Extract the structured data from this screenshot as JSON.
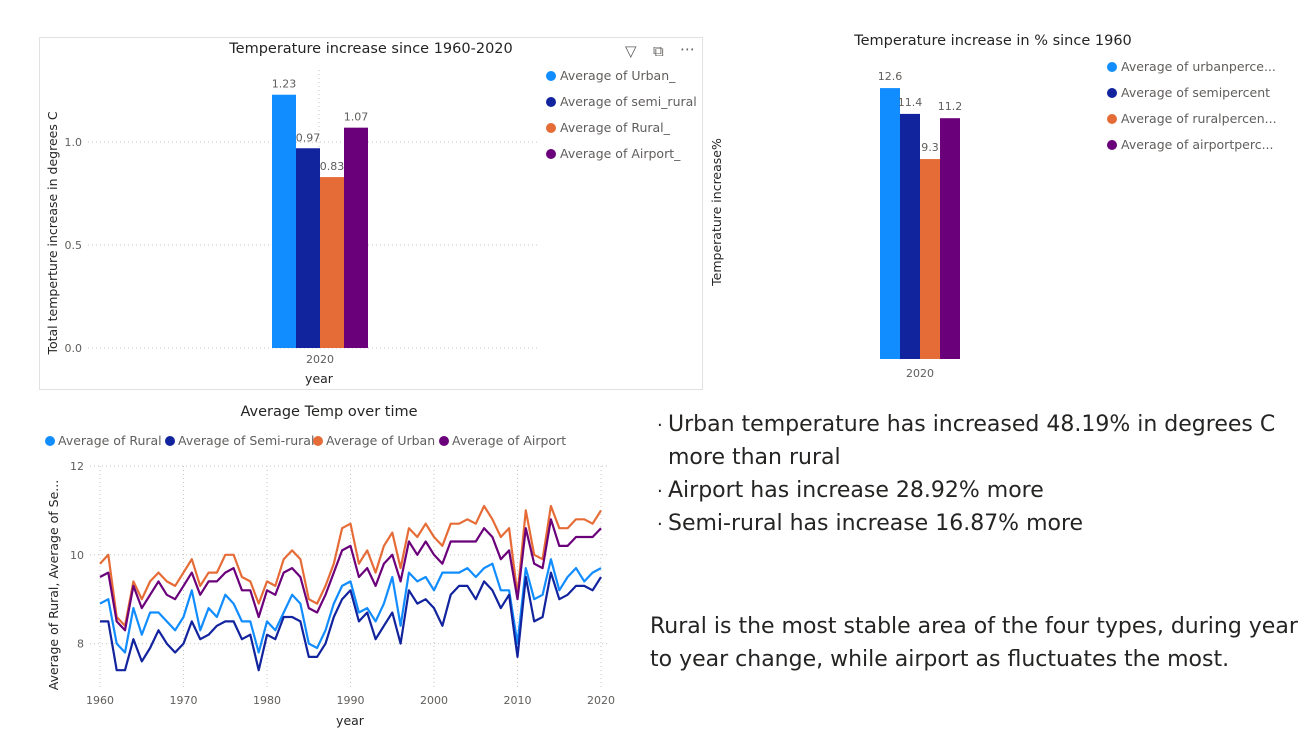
{
  "chart_data": [
    {
      "type": "bar",
      "title": "Temperature increase since 1960-2020",
      "xlabel": "year",
      "ylabel": "Total temperture increase in degrees C",
      "categories": [
        "2020"
      ],
      "ylim": [
        0,
        1.35
      ],
      "yticks": [
        "0.0",
        "0.5",
        "1.0"
      ],
      "legend_position": "right",
      "series": [
        {
          "name": "Average of Urban_",
          "values": [
            1.23
          ],
          "label": "1.23",
          "color": "#118dff"
        },
        {
          "name": "Average of semi_rural",
          "values": [
            0.97
          ],
          "label": "0.97",
          "color": "#12239e"
        },
        {
          "name": "Average of Rural_",
          "values": [
            0.83
          ],
          "label": "0.83",
          "color": "#e66c37"
        },
        {
          "name": "Average of Airport_",
          "values": [
            1.07
          ],
          "label": "1.07",
          "color": "#6b007b"
        }
      ]
    },
    {
      "type": "bar",
      "title": "Temperature increase in % since 1960",
      "xlabel": "",
      "ylabel": "Temperature increase%",
      "categories": [
        "2020"
      ],
      "ylim": [
        0,
        14
      ],
      "legend_position": "right",
      "series": [
        {
          "name": "Average of urbanperce...",
          "values": [
            12.6
          ],
          "label": "12.6",
          "color": "#118dff"
        },
        {
          "name": "Average of semipercent",
          "values": [
            11.4
          ],
          "label": "11.4",
          "color": "#12239e"
        },
        {
          "name": "Average of ruralpercen...",
          "values": [
            9.3
          ],
          "label": "9.3",
          "color": "#e66c37"
        },
        {
          "name": "Average of airportperc...",
          "values": [
            11.2
          ],
          "label": "11.2",
          "color": "#6b007b"
        }
      ]
    },
    {
      "type": "line",
      "title": "Average Temp over time",
      "xlabel": "year",
      "ylabel": "Average of Rural, Average of Se...",
      "xlim": [
        1960,
        2020
      ],
      "ylim": [
        7,
        12
      ],
      "xticks": [
        "1960",
        "1970",
        "1980",
        "1990",
        "2000",
        "2010",
        "2020"
      ],
      "yticks": [
        "8",
        "10",
        "12"
      ],
      "legend_position": "top-left",
      "x": [
        1960,
        1961,
        1962,
        1963,
        1964,
        1965,
        1966,
        1967,
        1968,
        1969,
        1970,
        1971,
        1972,
        1973,
        1974,
        1975,
        1976,
        1977,
        1978,
        1979,
        1980,
        1981,
        1982,
        1983,
        1984,
        1985,
        1986,
        1987,
        1988,
        1989,
        1990,
        1991,
        1992,
        1993,
        1994,
        1995,
        1996,
        1997,
        1998,
        1999,
        2000,
        2001,
        2002,
        2003,
        2004,
        2005,
        2006,
        2007,
        2008,
        2009,
        2010,
        2011,
        2012,
        2013,
        2014,
        2015,
        2016,
        2017,
        2018,
        2019,
        2020
      ],
      "series": [
        {
          "name": "Average of Rural",
          "color": "#118dff",
          "values": [
            8.9,
            9.0,
            8.0,
            7.8,
            8.8,
            8.2,
            8.7,
            8.7,
            8.5,
            8.3,
            8.6,
            9.2,
            8.3,
            8.8,
            8.6,
            9.1,
            8.9,
            8.5,
            8.5,
            7.8,
            8.5,
            8.3,
            8.7,
            9.1,
            8.9,
            8.0,
            7.9,
            8.3,
            8.9,
            9.3,
            9.4,
            8.7,
            8.8,
            8.5,
            8.9,
            9.5,
            8.4,
            9.6,
            9.4,
            9.5,
            9.2,
            9.6,
            9.6,
            9.6,
            9.7,
            9.5,
            9.7,
            9.8,
            9.2,
            9.2,
            8.0,
            9.7,
            9.0,
            9.1,
            9.9,
            9.2,
            9.5,
            9.7,
            9.4,
            9.6,
            9.7
          ]
        },
        {
          "name": "Average of Semi-rural",
          "color": "#12239e",
          "values": [
            8.5,
            8.5,
            7.4,
            7.4,
            8.1,
            7.6,
            7.9,
            8.3,
            8.0,
            7.8,
            8.0,
            8.5,
            8.1,
            8.2,
            8.4,
            8.5,
            8.5,
            8.1,
            8.2,
            7.4,
            8.2,
            8.1,
            8.6,
            8.6,
            8.5,
            7.7,
            7.7,
            8.0,
            8.6,
            9.0,
            9.2,
            8.5,
            8.7,
            8.1,
            8.4,
            8.7,
            8.0,
            9.2,
            8.9,
            9.0,
            8.8,
            8.4,
            9.1,
            9.3,
            9.3,
            9.0,
            9.4,
            9.2,
            8.8,
            9.1,
            7.7,
            9.5,
            8.5,
            8.6,
            9.6,
            9.0,
            9.1,
            9.3,
            9.3,
            9.2,
            9.5
          ]
        },
        {
          "name": "Average of Urban",
          "color": "#e66c37",
          "values": [
            9.8,
            10.0,
            8.6,
            8.4,
            9.4,
            9.0,
            9.4,
            9.6,
            9.4,
            9.3,
            9.6,
            9.9,
            9.3,
            9.6,
            9.6,
            10.0,
            10.0,
            9.5,
            9.4,
            8.9,
            9.4,
            9.3,
            9.9,
            10.1,
            9.9,
            9.0,
            8.9,
            9.3,
            9.8,
            10.6,
            10.7,
            9.8,
            10.1,
            9.6,
            10.2,
            10.5,
            9.7,
            10.6,
            10.4,
            10.7,
            10.4,
            10.2,
            10.7,
            10.7,
            10.8,
            10.7,
            11.1,
            10.8,
            10.4,
            10.6,
            9.1,
            11.0,
            10.0,
            9.9,
            11.1,
            10.6,
            10.6,
            10.8,
            10.8,
            10.7,
            11.0
          ]
        },
        {
          "name": "Average of Airport",
          "color": "#6b007b",
          "values": [
            9.5,
            9.6,
            8.5,
            8.3,
            9.3,
            8.8,
            9.1,
            9.4,
            9.1,
            9.0,
            9.3,
            9.6,
            9.1,
            9.4,
            9.4,
            9.6,
            9.7,
            9.2,
            9.2,
            8.6,
            9.2,
            9.1,
            9.6,
            9.7,
            9.5,
            8.8,
            8.7,
            9.1,
            9.6,
            10.1,
            10.2,
            9.5,
            9.7,
            9.3,
            9.8,
            10.0,
            9.4,
            10.3,
            10.0,
            10.3,
            10.0,
            9.8,
            10.3,
            10.3,
            10.3,
            10.3,
            10.6,
            10.4,
            9.9,
            10.1,
            9.0,
            10.6,
            9.8,
            9.7,
            10.8,
            10.2,
            10.2,
            10.4,
            10.4,
            10.4,
            10.6
          ]
        }
      ]
    }
  ],
  "insights": {
    "bullets": [
      "Urban temperature has increased 48.19% in degrees C more than rural",
      "Airport has increase 28.92% more",
      "Semi-rural has increase 16.87% more"
    ],
    "note": "Rural is the most stable area of the four types, during year to year change, while airport as fluctuates the most."
  },
  "visual_header_icons": [
    "filter-icon",
    "focus-mode-icon",
    "more-options-icon"
  ]
}
